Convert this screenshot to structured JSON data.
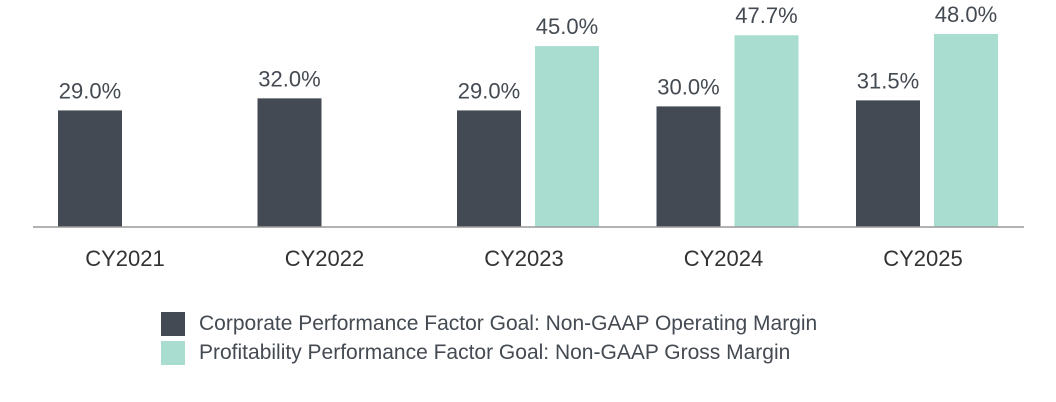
{
  "chart_data": {
    "type": "bar",
    "title": "",
    "xlabel": "",
    "ylabel": "",
    "categories": [
      "CY2021",
      "CY2022",
      "CY2023",
      "CY2024",
      "CY2025"
    ],
    "series": [
      {
        "name": "Corporate Performance Factor Goal: Non-GAAP Operating Margin",
        "color": "#444a54",
        "values": [
          29.0,
          32.0,
          29.0,
          30.0,
          31.5
        ],
        "labels": [
          "29.0%",
          "32.0%",
          "29.0%",
          "30.0%",
          "31.5%"
        ]
      },
      {
        "name": "Profitability Performance Factor Goal: Non-GAAP Gross Margin",
        "color": "#a8ddd0",
        "values": [
          null,
          null,
          45.0,
          47.7,
          48.0
        ],
        "labels": [
          null,
          null,
          "45.0%",
          "47.7%",
          "48.0%"
        ]
      }
    ],
    "ylim": [
      0,
      50
    ],
    "grid": false,
    "legend_position": "bottom"
  }
}
